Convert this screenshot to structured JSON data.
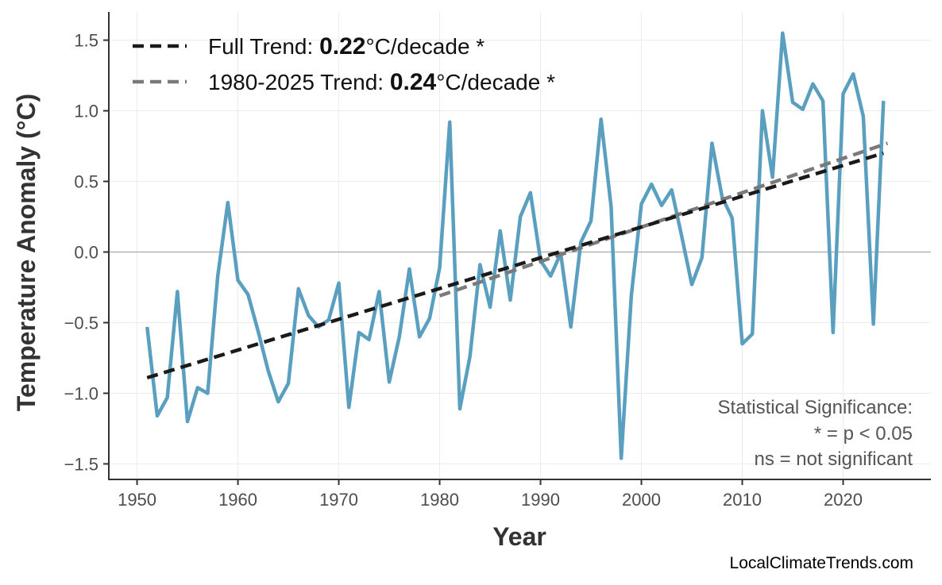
{
  "chart_data": {
    "type": "line",
    "xlabel": "Year",
    "ylabel": "Temperature Anomaly (°C)",
    "xlim": [
      1947.2,
      2028.7
    ],
    "ylim": [
      -1.61,
      1.7
    ],
    "xticks": [
      1950,
      1960,
      1970,
      1980,
      1990,
      2000,
      2010,
      2020
    ],
    "yticks": [
      -1.5,
      -1.0,
      -0.5,
      0.0,
      0.5,
      1.0,
      1.5
    ],
    "ytick_labels": [
      "−1.5",
      "−1.0",
      "−0.5",
      "0.0",
      "0.5",
      "1.0",
      "1.5"
    ],
    "grid": true,
    "zero_line": true,
    "legend_position": "top-left",
    "series": [
      {
        "color": "#5A9FBF",
        "x": [
          1951,
          1952,
          1953,
          1954,
          1955,
          1956,
          1957,
          1958,
          1959,
          1960,
          1961,
          1962,
          1963,
          1964,
          1965,
          1966,
          1967,
          1968,
          1969,
          1970,
          1971,
          1972,
          1973,
          1974,
          1975,
          1976,
          1977,
          1978,
          1979,
          1980,
          1981,
          1982,
          1983,
          1984,
          1985,
          1986,
          1987,
          1988,
          1989,
          1990,
          1991,
          1992,
          1993,
          1994,
          1995,
          1996,
          1997,
          1998,
          1999,
          2000,
          2001,
          2002,
          2003,
          2004,
          2005,
          2006,
          2007,
          2008,
          2009,
          2010,
          2011,
          2012,
          2013,
          2014,
          2015,
          2016,
          2017,
          2018,
          2019,
          2020,
          2021,
          2022,
          2023,
          2024
        ],
        "y": [
          -0.53,
          -1.16,
          -1.03,
          -0.28,
          -1.2,
          -0.96,
          -1.0,
          -0.17,
          0.35,
          -0.2,
          -0.3,
          -0.56,
          -0.84,
          -1.06,
          -0.93,
          -0.26,
          -0.45,
          -0.53,
          -0.48,
          -0.22,
          -1.1,
          -0.57,
          -0.62,
          -0.28,
          -0.92,
          -0.6,
          -0.12,
          -0.6,
          -0.47,
          -0.11,
          0.92,
          -1.11,
          -0.74,
          -0.09,
          -0.39,
          0.15,
          -0.34,
          0.25,
          0.42,
          -0.06,
          -0.17,
          -0.01,
          -0.53,
          0.07,
          0.22,
          0.94,
          0.32,
          -1.46,
          -0.31,
          0.34,
          0.48,
          0.33,
          0.44,
          0.11,
          -0.23,
          -0.04,
          0.77,
          0.39,
          0.24,
          -0.65,
          -0.58,
          1.0,
          0.53,
          1.55,
          1.06,
          1.01,
          1.19,
          1.07,
          -0.57,
          1.12,
          1.26,
          0.96,
          -0.51,
          1.07
        ]
      }
    ],
    "trends": [
      {
        "label_prefix": "Full Trend: ",
        "value": "0.22",
        "label_suffix": "°C/decade *",
        "color": "#1a1a1a",
        "x": [
          1951,
          2024
        ],
        "y": [
          -0.89,
          0.7
        ]
      },
      {
        "label_prefix": "1980-2025 Trend: ",
        "value": "0.24",
        "label_suffix": "°C/decade *",
        "color": "#7a7a7a",
        "x": [
          1980,
          2024.4
        ],
        "y": [
          -0.31,
          0.77
        ]
      }
    ],
    "annotations": [
      "Statistical Significance:",
      "* = p < 0.05",
      "ns = not significant"
    ]
  },
  "credit": "LocalClimateTrends.com"
}
